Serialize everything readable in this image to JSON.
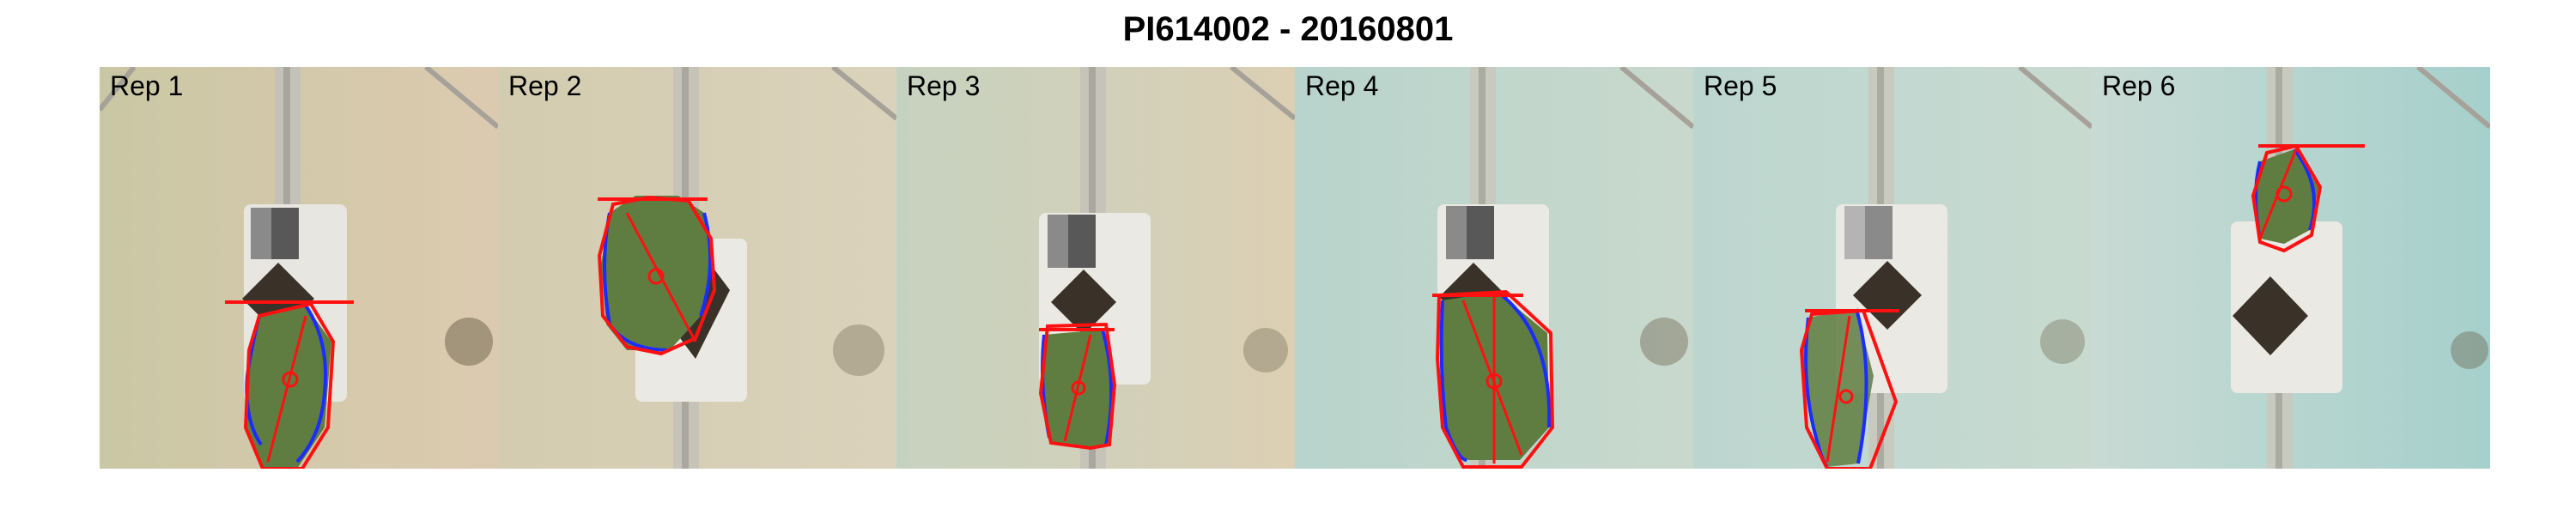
{
  "title": "PI614002 - 20160801",
  "panels": [
    {
      "label": "Rep 1",
      "bg_left": "#cfcaa8",
      "bg_right": "#d9cbb0"
    },
    {
      "label": "Rep 2",
      "bg_left": "#d6cdb2",
      "bg_right": "#d8d0b8"
    },
    {
      "label": "Rep 3",
      "bg_left": "#c9d3c2",
      "bg_right": "#d8cfb6"
    },
    {
      "label": "Rep 4",
      "bg_left": "#b9d4cd",
      "bg_right": "#c7d8cc"
    },
    {
      "label": "Rep 5",
      "bg_left": "#bcd6cf",
      "bg_right": "#c6dad0"
    },
    {
      "label": "Rep 6",
      "bg_left": "#c5d9d2",
      "bg_right": "#a9d1cd"
    }
  ],
  "colors": {
    "hull": "#ff1010",
    "contour": "#1a2cff",
    "leaf": "#5a7a3a",
    "rail": "#cfcfcf"
  }
}
